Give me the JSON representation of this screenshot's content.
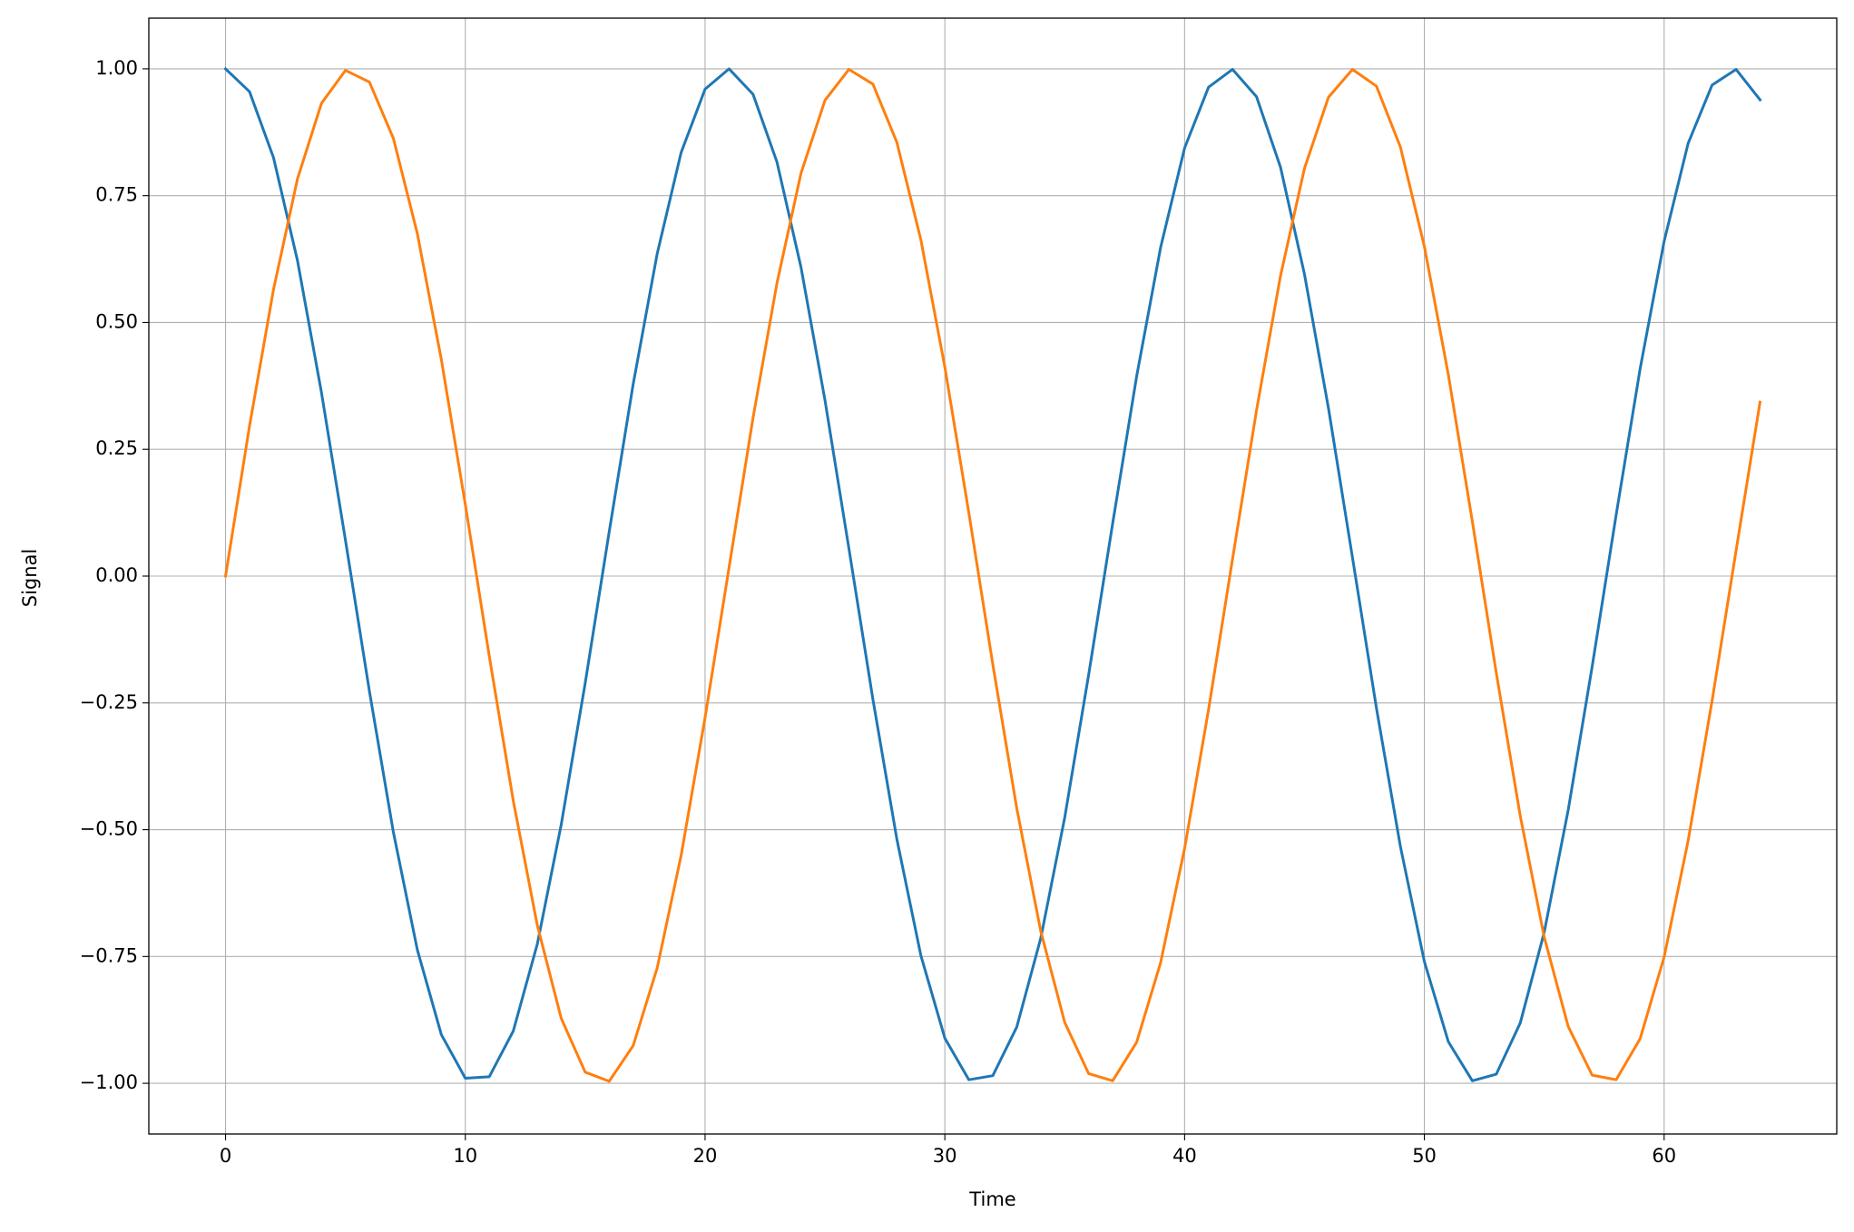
{
  "chart_data": {
    "type": "line",
    "xlabel": "Time",
    "ylabel": "Signal",
    "x": [
      0,
      1,
      2,
      3,
      4,
      5,
      6,
      7,
      8,
      9,
      10,
      11,
      12,
      13,
      14,
      15,
      16,
      17,
      18,
      19,
      20,
      21,
      22,
      23,
      24,
      25,
      26,
      27,
      28,
      29,
      30,
      31,
      32,
      33,
      34,
      35,
      36,
      37,
      38,
      39,
      40,
      41,
      42,
      43,
      44,
      45,
      46,
      47,
      48,
      49,
      50,
      51,
      52,
      53,
      54,
      55,
      56,
      57,
      58,
      59,
      60,
      61,
      62,
      63,
      64
    ],
    "series": [
      {
        "color": "#1f77b4",
        "values": [
          1.0,
          0.955,
          0.825,
          0.622,
          0.362,
          0.071,
          -0.227,
          -0.505,
          -0.737,
          -0.904,
          -0.99,
          -0.987,
          -0.897,
          -0.726,
          -0.49,
          -0.211,
          0.087,
          0.378,
          0.635,
          0.835,
          0.96,
          1.0,
          0.95,
          0.816,
          0.609,
          0.347,
          0.054,
          -0.243,
          -0.519,
          -0.748,
          -0.911,
          -0.993,
          -0.985,
          -0.889,
          -0.714,
          -0.476,
          -0.194,
          0.104,
          0.394,
          0.648,
          0.844,
          0.964,
          0.999,
          0.945,
          0.806,
          0.595,
          0.331,
          0.037,
          -0.26,
          -0.533,
          -0.76,
          -0.918,
          -0.995,
          -0.982,
          -0.881,
          -0.702,
          -0.461,
          -0.178,
          0.121,
          0.409,
          0.66,
          0.853,
          0.968,
          0.999,
          0.939
        ]
      },
      {
        "color": "#ff7f0e",
        "values": [
          0.0,
          0.296,
          0.565,
          0.783,
          0.932,
          0.997,
          0.974,
          0.863,
          0.675,
          0.427,
          0.141,
          -0.158,
          -0.443,
          -0.688,
          -0.872,
          -0.978,
          -0.996,
          -0.926,
          -0.773,
          -0.551,
          -0.279,
          0.017,
          0.312,
          0.578,
          0.794,
          0.938,
          0.999,
          0.97,
          0.855,
          0.663,
          0.412,
          0.125,
          -0.174,
          -0.458,
          -0.7,
          -0.88,
          -0.981,
          -0.995,
          -0.919,
          -0.762,
          -0.537,
          -0.263,
          0.034,
          0.327,
          0.592,
          0.804,
          0.944,
          0.999,
          0.966,
          0.846,
          0.65,
          0.397,
          0.108,
          -0.191,
          -0.473,
          -0.712,
          -0.888,
          -0.984,
          -0.993,
          -0.912,
          -0.751,
          -0.522,
          -0.246,
          0.05,
          0.343
        ]
      }
    ],
    "xlim": [
      -3.2,
      67.2
    ],
    "xticks": [
      0,
      10,
      20,
      30,
      40,
      50,
      60
    ],
    "ylim": [
      -1.1,
      1.1
    ],
    "yticks": [
      {
        "value": -1,
        "label": "−1.00"
      },
      {
        "value": -0.75,
        "label": "−0.75"
      },
      {
        "value": -0.5,
        "label": "−0.50"
      },
      {
        "value": -0.25,
        "label": "−0.25"
      },
      {
        "value": 0,
        "label": "0.00"
      },
      {
        "value": 0.25,
        "label": "0.25"
      },
      {
        "value": 0.5,
        "label": "0.50"
      },
      {
        "value": 0.75,
        "label": "0.75"
      },
      {
        "value": 1,
        "label": "1.00"
      }
    ],
    "grid": true
  }
}
